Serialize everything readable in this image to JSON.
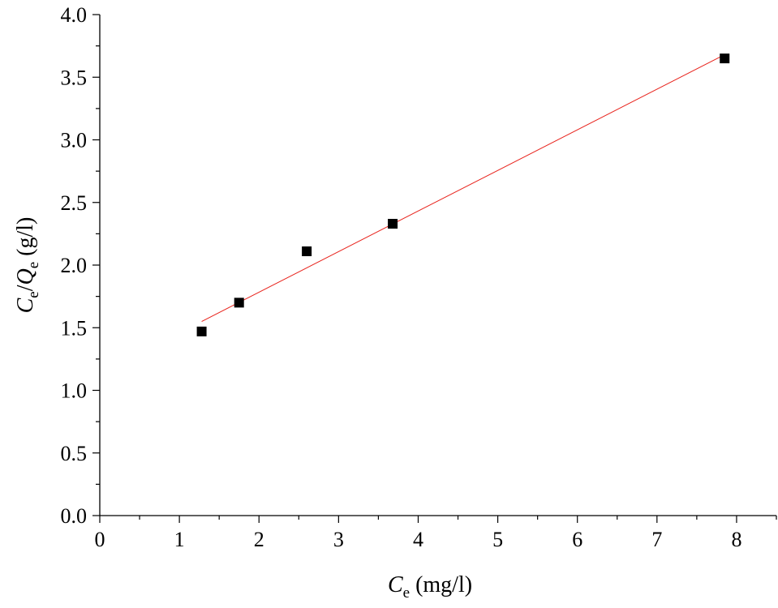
{
  "chart_data": {
    "type": "scatter",
    "x": [
      1.28,
      1.75,
      2.6,
      3.68,
      7.85
    ],
    "y": [
      1.47,
      1.7,
      2.11,
      2.33,
      3.65
    ],
    "fit_line": {
      "x": [
        1.28,
        7.85
      ],
      "y": [
        1.55,
        3.68
      ],
      "color": "#e8231c"
    },
    "marker": "square",
    "marker_color": "#000000",
    "xlim": [
      0,
      8.5
    ],
    "ylim": [
      0,
      4.0
    ],
    "x_ticks": [
      "0",
      "1",
      "2",
      "3",
      "4",
      "5",
      "6",
      "7",
      "8"
    ],
    "y_ticks": [
      "0.0",
      "0.5",
      "1.0",
      "1.5",
      "2.0",
      "2.5",
      "3.0",
      "3.5",
      "4.0"
    ],
    "xlabel": {
      "main": "C",
      "sub": "e",
      "unit": " (mg/l)"
    },
    "ylabel": {
      "c": "C",
      "c_sub": "e",
      "slash": "/",
      "q": "Q",
      "q_sub": "e",
      "unit": " (g/l)"
    },
    "grid": false
  }
}
